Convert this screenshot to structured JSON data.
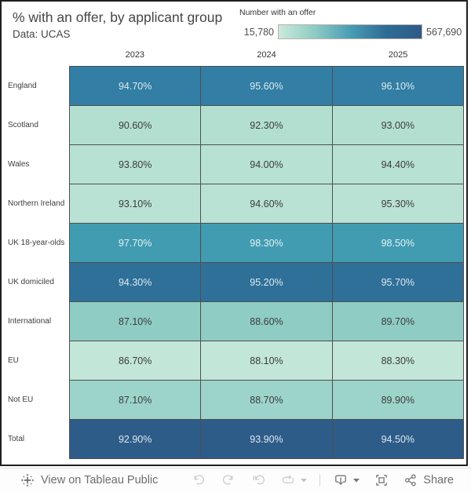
{
  "title": "% with an offer, by applicant group",
  "subtitle": "Data: UCAS",
  "legend": {
    "title": "Number with an offer",
    "min_label": "15,780",
    "max_label": "567,690",
    "gradient": [
      "#cbe9dc",
      "#8fccc4",
      "#4a9db4",
      "#2d6c96",
      "#2d5c88"
    ]
  },
  "chart_data": {
    "type": "heatmap",
    "title": "% with an offer, by applicant group",
    "source_note": "Data: UCAS",
    "columns": [
      "2023",
      "2024",
      "2025"
    ],
    "rows": [
      {
        "label": "England",
        "values": [
          "94.70%",
          "95.60%",
          "96.10%"
        ],
        "cell_color": "#327ea4",
        "text_color": "#dde9ef"
      },
      {
        "label": "Scotland",
        "values": [
          "90.60%",
          "92.30%",
          "93.00%"
        ],
        "cell_color": "#b3dfd1",
        "text_color": "#3c3c3c"
      },
      {
        "label": "Wales",
        "values": [
          "93.80%",
          "94.00%",
          "94.40%"
        ],
        "cell_color": "#b6e1d3",
        "text_color": "#3c3c3c"
      },
      {
        "label": "Northern Ireland",
        "values": [
          "93.10%",
          "94.60%",
          "95.30%"
        ],
        "cell_color": "#b9e2d5",
        "text_color": "#3c3c3c"
      },
      {
        "label": "UK 18-year-olds",
        "values": [
          "97.70%",
          "98.30%",
          "98.50%"
        ],
        "cell_color": "#419cb1",
        "text_color": "#e6f0f3"
      },
      {
        "label": "UK domiciled",
        "values": [
          "94.30%",
          "95.20%",
          "95.70%"
        ],
        "cell_color": "#2f7099",
        "text_color": "#dde9ef"
      },
      {
        "label": "International",
        "values": [
          "87.10%",
          "88.60%",
          "89.70%"
        ],
        "cell_color": "#8fccc3",
        "text_color": "#3c3c3c"
      },
      {
        "label": "EU",
        "values": [
          "86.70%",
          "88.10%",
          "88.30%"
        ],
        "cell_color": "#c2e6d8",
        "text_color": "#3c3c3c"
      },
      {
        "label": "Not EU",
        "values": [
          "87.10%",
          "88.70%",
          "89.90%"
        ],
        "cell_color": "#9cd3ca",
        "text_color": "#3c3c3c"
      },
      {
        "label": "Total",
        "values": [
          "92.90%",
          "93.90%",
          "94.50%"
        ],
        "cell_color": "#2e5c89",
        "text_color": "#dde9ef"
      }
    ],
    "legend": {
      "title": "Number with an offer",
      "min": 15780,
      "max": 567690,
      "position": "top-right"
    },
    "grid": true
  },
  "toolbar": {
    "view_label": "View on Tableau Public",
    "share_label": "Share",
    "icon_colors": {
      "enabled": "#757575",
      "disabled": "#cbcbcb",
      "brand": "#6e6e6e"
    }
  }
}
